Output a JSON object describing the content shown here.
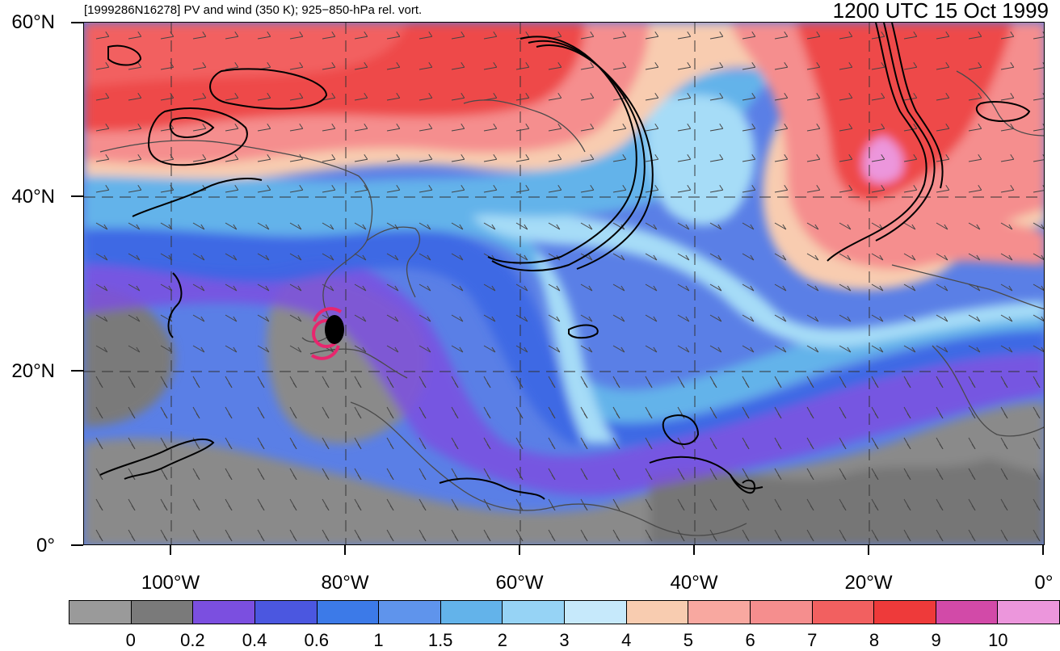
{
  "titles": {
    "left": "[1999286N16278] PV and wind (350 K); 925−850-hPa rel. vort.",
    "right": "1200 UTC 15 Oct 1999"
  },
  "axes": {
    "lat_labels": [
      "60°N",
      "40°N",
      "20°N",
      "0°"
    ],
    "lon_labels": [
      "100°W",
      "80°W",
      "60°W",
      "40°W",
      "20°W",
      "0°"
    ]
  },
  "colorbar": {
    "colors": [
      "#9a9a9a",
      "#7a7a7a",
      "#7b4fe0",
      "#4b57e0",
      "#3c7ae8",
      "#5f94ec",
      "#63b3ea",
      "#96d3f5",
      "#c6e9fb",
      "#f8ccb0",
      "#f8a8a0",
      "#f58e8e",
      "#f26060",
      "#ee3a3a",
      "#d24aa8",
      "#ec96dc"
    ],
    "labels": [
      "0",
      "0.2",
      "0.4",
      "0.6",
      "1",
      "1.5",
      "2",
      "3",
      "4",
      "5",
      "6",
      "7",
      "8",
      "9",
      "10"
    ]
  },
  "map_colors": {
    "tropical_gray": "#8a8a8a",
    "dark_gray": "#707070",
    "violet": "#7b4fe0",
    "blue": "#4b57e0",
    "mid_blue": "#3c7ae8",
    "light_blue": "#63b3ea",
    "pale_blue": "#a6dcf7",
    "peach": "#f8ccb0",
    "pink": "#f58e8e",
    "red": "#ee4a4a",
    "magenta": "#d24aa8",
    "vorticity_contour": "#000000",
    "storm_marker": "#e8266e",
    "coastline": "#555555"
  }
}
